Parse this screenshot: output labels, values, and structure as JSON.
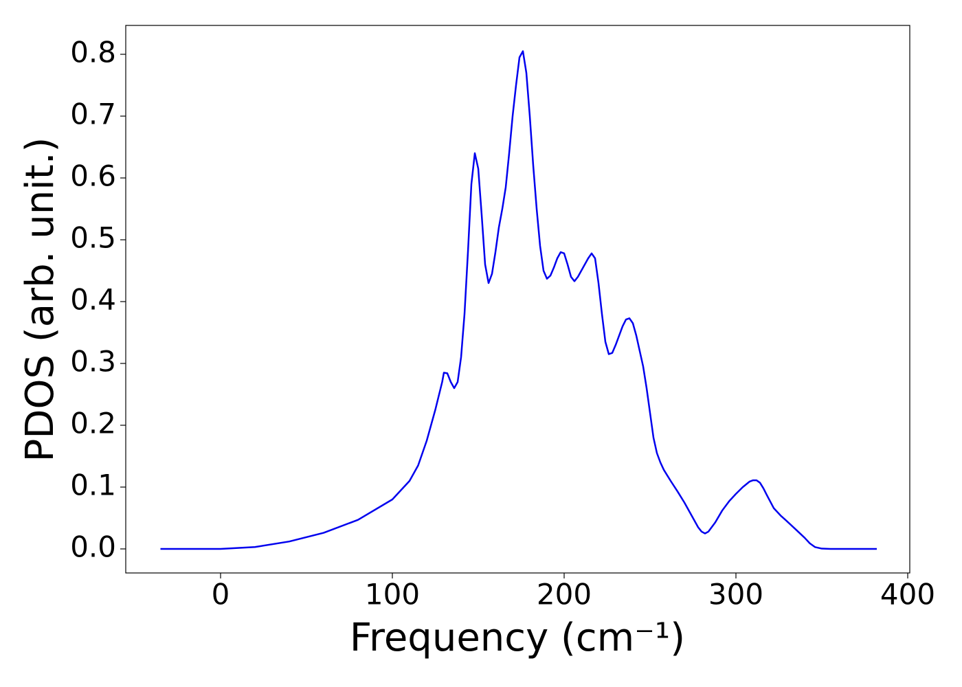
{
  "chart_data": {
    "type": "line",
    "xlabel": "Frequency (cm⁻¹)",
    "ylabel": "PDOS (arb. unit.)",
    "xlim": [
      -55.2,
      401.2
    ],
    "ylim": [
      -0.0389,
      0.8467
    ],
    "xticks": [
      0,
      100,
      200,
      300,
      400
    ],
    "yticks": [
      {
        "value": 0,
        "label": "0.0"
      },
      0.1,
      0.2,
      0.3,
      0.4,
      0.5,
      0.6,
      0.7,
      0.8
    ],
    "series": [
      {
        "color": "#0000ee",
        "x": [
          -35,
          0,
          20,
          40,
          60,
          80,
          100,
          110,
          115,
          120,
          125,
          129,
          130,
          132,
          134,
          136,
          138,
          140,
          142,
          144,
          146,
          148,
          150,
          152,
          154,
          156,
          158,
          160,
          162,
          164,
          166,
          168,
          170,
          172,
          174,
          176,
          178,
          180,
          182,
          184,
          186,
          188,
          190,
          192,
          194,
          196,
          198,
          200,
          202,
          204,
          206,
          208,
          210,
          212,
          214,
          216,
          218,
          220,
          222,
          224,
          226,
          228,
          230,
          232,
          234,
          236,
          238,
          240,
          242,
          244,
          246,
          248,
          250,
          252,
          254,
          256,
          258,
          262,
          266,
          270,
          274,
          278,
          280,
          282,
          284,
          288,
          292,
          296,
          300,
          304,
          308,
          310,
          312,
          314,
          316,
          318,
          322,
          326,
          330,
          335,
          340,
          343,
          346,
          350,
          355,
          382
        ],
        "values": [
          0,
          0,
          0.003,
          0.012,
          0.026,
          0.047,
          0.08,
          0.11,
          0.135,
          0.175,
          0.225,
          0.27,
          0.285,
          0.284,
          0.27,
          0.26,
          0.27,
          0.31,
          0.38,
          0.48,
          0.59,
          0.64,
          0.615,
          0.54,
          0.46,
          0.43,
          0.445,
          0.48,
          0.52,
          0.55,
          0.585,
          0.64,
          0.7,
          0.75,
          0.795,
          0.805,
          0.77,
          0.7,
          0.62,
          0.55,
          0.49,
          0.45,
          0.437,
          0.442,
          0.455,
          0.47,
          0.48,
          0.478,
          0.46,
          0.44,
          0.433,
          0.44,
          0.45,
          0.46,
          0.47,
          0.478,
          0.47,
          0.43,
          0.38,
          0.335,
          0.315,
          0.317,
          0.33,
          0.345,
          0.36,
          0.371,
          0.373,
          0.365,
          0.345,
          0.32,
          0.295,
          0.26,
          0.22,
          0.18,
          0.155,
          0.14,
          0.128,
          0.11,
          0.093,
          0.075,
          0.055,
          0.035,
          0.028,
          0.025,
          0.028,
          0.043,
          0.062,
          0.077,
          0.089,
          0.1,
          0.109,
          0.111,
          0.111,
          0.107,
          0.098,
          0.087,
          0.066,
          0.054,
          0.044,
          0.031,
          0.018,
          0.009,
          0.003,
          0.0005,
          0,
          0
        ]
      }
    ]
  }
}
